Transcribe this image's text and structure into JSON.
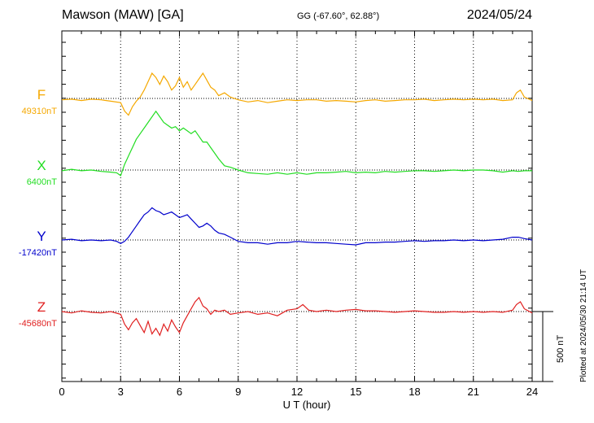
{
  "header": {
    "title": "Mawson (MAW)  [GA]",
    "coords": "GG (-67.60°,  62.88°)",
    "date": "2024/05/24"
  },
  "footer": {
    "plotted": "Plotted at 2024/05/30 21:14 UT",
    "scale_label": "500 nT"
  },
  "chart_data": {
    "type": "line",
    "title": "Mawson (MAW)  [GA]",
    "xlabel": "U T (hour)",
    "ylabel": "",
    "xlim": [
      0,
      24
    ],
    "x_ticks": [
      0,
      3,
      6,
      9,
      12,
      15,
      18,
      21,
      24
    ],
    "grid": true,
    "scale_bar_nT": 500,
    "series": [
      {
        "name": "F",
        "baseline_label": "49310nT",
        "baseline_nT": 49310,
        "color": "#f5a800",
        "points": [
          [
            0,
            -10
          ],
          [
            0.5,
            -5
          ],
          [
            1,
            -15
          ],
          [
            1.5,
            -5
          ],
          [
            2,
            -10
          ],
          [
            2.5,
            -20
          ],
          [
            3,
            -30
          ],
          [
            3.2,
            -90
          ],
          [
            3.4,
            -120
          ],
          [
            3.6,
            -60
          ],
          [
            3.8,
            -20
          ],
          [
            4,
            10
          ],
          [
            4.2,
            60
          ],
          [
            4.4,
            120
          ],
          [
            4.6,
            180
          ],
          [
            4.8,
            150
          ],
          [
            5,
            100
          ],
          [
            5.2,
            160
          ],
          [
            5.4,
            120
          ],
          [
            5.6,
            60
          ],
          [
            5.8,
            90
          ],
          [
            6,
            150
          ],
          [
            6.2,
            80
          ],
          [
            6.4,
            120
          ],
          [
            6.6,
            60
          ],
          [
            6.8,
            100
          ],
          [
            7,
            140
          ],
          [
            7.2,
            180
          ],
          [
            7.4,
            130
          ],
          [
            7.6,
            80
          ],
          [
            7.8,
            60
          ],
          [
            8,
            20
          ],
          [
            8.3,
            40
          ],
          [
            8.6,
            10
          ],
          [
            9,
            -10
          ],
          [
            9.5,
            -25
          ],
          [
            10,
            -15
          ],
          [
            10.5,
            -30
          ],
          [
            11,
            -20
          ],
          [
            11.5,
            -10
          ],
          [
            12,
            -15
          ],
          [
            12.5,
            -10
          ],
          [
            13,
            -10
          ],
          [
            13.5,
            -20
          ],
          [
            14,
            -15
          ],
          [
            14.5,
            -20
          ],
          [
            15,
            -25
          ],
          [
            15.5,
            -15
          ],
          [
            16,
            -10
          ],
          [
            16.5,
            -20
          ],
          [
            17,
            -15
          ],
          [
            17.5,
            -10
          ],
          [
            18,
            -10
          ],
          [
            18.5,
            -5
          ],
          [
            19,
            -15
          ],
          [
            19.5,
            -10
          ],
          [
            20,
            -5
          ],
          [
            20.5,
            -10
          ],
          [
            21,
            -5
          ],
          [
            21.5,
            -10
          ],
          [
            22,
            -5
          ],
          [
            22.5,
            -15
          ],
          [
            23,
            -10
          ],
          [
            23.2,
            40
          ],
          [
            23.4,
            60
          ],
          [
            23.6,
            10
          ],
          [
            24,
            -15
          ]
        ]
      },
      {
        "name": "X",
        "baseline_label": "6400nT",
        "baseline_nT": 6400,
        "color": "#22dd22",
        "points": [
          [
            0,
            -5
          ],
          [
            0.5,
            5
          ],
          [
            1,
            -5
          ],
          [
            1.5,
            0
          ],
          [
            2,
            -10
          ],
          [
            2.5,
            -15
          ],
          [
            2.8,
            -20
          ],
          [
            3,
            -40
          ],
          [
            3.2,
            40
          ],
          [
            3.4,
            100
          ],
          [
            3.6,
            160
          ],
          [
            3.8,
            220
          ],
          [
            4,
            260
          ],
          [
            4.2,
            300
          ],
          [
            4.4,
            340
          ],
          [
            4.6,
            380
          ],
          [
            4.8,
            420
          ],
          [
            5,
            380
          ],
          [
            5.2,
            340
          ],
          [
            5.4,
            320
          ],
          [
            5.6,
            300
          ],
          [
            5.8,
            310
          ],
          [
            6,
            280
          ],
          [
            6.2,
            300
          ],
          [
            6.4,
            280
          ],
          [
            6.6,
            260
          ],
          [
            6.8,
            280
          ],
          [
            7,
            240
          ],
          [
            7.2,
            200
          ],
          [
            7.4,
            200
          ],
          [
            7.6,
            160
          ],
          [
            7.8,
            120
          ],
          [
            8,
            80
          ],
          [
            8.3,
            30
          ],
          [
            8.6,
            20
          ],
          [
            9,
            0
          ],
          [
            9.5,
            -20
          ],
          [
            10,
            -25
          ],
          [
            10.5,
            -30
          ],
          [
            11,
            -20
          ],
          [
            11.5,
            -30
          ],
          [
            12,
            -20
          ],
          [
            12.5,
            -30
          ],
          [
            13,
            -20
          ],
          [
            13.5,
            -20
          ],
          [
            14,
            -15
          ],
          [
            14.5,
            -10
          ],
          [
            15,
            -20
          ],
          [
            15.5,
            -15
          ],
          [
            16,
            -20
          ],
          [
            16.5,
            -10
          ],
          [
            17,
            -15
          ],
          [
            17.5,
            -10
          ],
          [
            18,
            -5
          ],
          [
            18.5,
            -5
          ],
          [
            19,
            -10
          ],
          [
            19.5,
            -5
          ],
          [
            20,
            0
          ],
          [
            20.5,
            -5
          ],
          [
            21,
            0
          ],
          [
            21.5,
            0
          ],
          [
            22,
            -5
          ],
          [
            22.5,
            -15
          ],
          [
            23,
            -5
          ],
          [
            23.3,
            -10
          ],
          [
            23.6,
            -5
          ],
          [
            24,
            -5
          ]
        ]
      },
      {
        "name": "Y",
        "baseline_label": "-17420nT",
        "baseline_nT": -17420,
        "color": "#0000cc",
        "points": [
          [
            0,
            0
          ],
          [
            0.5,
            5
          ],
          [
            1,
            -5
          ],
          [
            1.5,
            0
          ],
          [
            2,
            -5
          ],
          [
            2.5,
            0
          ],
          [
            2.8,
            -10
          ],
          [
            3,
            -25
          ],
          [
            3.2,
            -10
          ],
          [
            3.4,
            20
          ],
          [
            3.6,
            60
          ],
          [
            3.8,
            100
          ],
          [
            4,
            140
          ],
          [
            4.2,
            180
          ],
          [
            4.4,
            200
          ],
          [
            4.6,
            230
          ],
          [
            4.8,
            210
          ],
          [
            5,
            200
          ],
          [
            5.2,
            180
          ],
          [
            5.4,
            190
          ],
          [
            5.6,
            200
          ],
          [
            5.8,
            180
          ],
          [
            6,
            160
          ],
          [
            6.2,
            170
          ],
          [
            6.4,
            180
          ],
          [
            6.6,
            150
          ],
          [
            6.8,
            120
          ],
          [
            7,
            90
          ],
          [
            7.2,
            100
          ],
          [
            7.4,
            120
          ],
          [
            7.6,
            100
          ],
          [
            7.8,
            70
          ],
          [
            8,
            50
          ],
          [
            8.3,
            40
          ],
          [
            8.6,
            20
          ],
          [
            9,
            -10
          ],
          [
            9.5,
            -20
          ],
          [
            10,
            -20
          ],
          [
            10.5,
            -30
          ],
          [
            11,
            -20
          ],
          [
            11.5,
            -20
          ],
          [
            12,
            -10
          ],
          [
            12.5,
            -15
          ],
          [
            13,
            -20
          ],
          [
            13.5,
            -20
          ],
          [
            14,
            -25
          ],
          [
            14.5,
            -30
          ],
          [
            15,
            -35
          ],
          [
            15.5,
            -20
          ],
          [
            16,
            -20
          ],
          [
            16.5,
            -15
          ],
          [
            17,
            -15
          ],
          [
            17.5,
            -10
          ],
          [
            18,
            -5
          ],
          [
            18.5,
            -10
          ],
          [
            19,
            -5
          ],
          [
            19.5,
            -5
          ],
          [
            20,
            0
          ],
          [
            20.5,
            -5
          ],
          [
            21,
            0
          ],
          [
            21.5,
            -5
          ],
          [
            22,
            0
          ],
          [
            22.5,
            5
          ],
          [
            23,
            20
          ],
          [
            23.3,
            20
          ],
          [
            23.6,
            10
          ],
          [
            24,
            0
          ]
        ]
      },
      {
        "name": "Z",
        "baseline_label": "-45680nT",
        "baseline_nT": -45680,
        "color": "#e02020",
        "points": [
          [
            0,
            0
          ],
          [
            0.5,
            -10
          ],
          [
            1,
            5
          ],
          [
            1.5,
            -5
          ],
          [
            2,
            -10
          ],
          [
            2.5,
            0
          ],
          [
            3,
            -20
          ],
          [
            3.2,
            -90
          ],
          [
            3.4,
            -130
          ],
          [
            3.6,
            -80
          ],
          [
            3.8,
            -50
          ],
          [
            4,
            -100
          ],
          [
            4.2,
            -150
          ],
          [
            4.4,
            -70
          ],
          [
            4.6,
            -160
          ],
          [
            4.8,
            -120
          ],
          [
            5,
            -170
          ],
          [
            5.2,
            -90
          ],
          [
            5.4,
            -140
          ],
          [
            5.6,
            -60
          ],
          [
            5.8,
            -110
          ],
          [
            6,
            -150
          ],
          [
            6.2,
            -80
          ],
          [
            6.4,
            -30
          ],
          [
            6.6,
            20
          ],
          [
            6.8,
            70
          ],
          [
            7,
            100
          ],
          [
            7.2,
            40
          ],
          [
            7.4,
            20
          ],
          [
            7.6,
            -20
          ],
          [
            7.8,
            10
          ],
          [
            8,
            0
          ],
          [
            8.3,
            10
          ],
          [
            8.6,
            -20
          ],
          [
            9,
            -10
          ],
          [
            9.5,
            0
          ],
          [
            10,
            -20
          ],
          [
            10.5,
            -10
          ],
          [
            11,
            -30
          ],
          [
            11.5,
            10
          ],
          [
            12,
            20
          ],
          [
            12.3,
            50
          ],
          [
            12.6,
            10
          ],
          [
            13,
            0
          ],
          [
            13.5,
            10
          ],
          [
            14,
            0
          ],
          [
            14.5,
            10
          ],
          [
            15,
            15
          ],
          [
            15.5,
            5
          ],
          [
            16,
            5
          ],
          [
            16.5,
            0
          ],
          [
            17,
            -5
          ],
          [
            17.5,
            0
          ],
          [
            18,
            5
          ],
          [
            18.5,
            0
          ],
          [
            19,
            -5
          ],
          [
            19.5,
            -5
          ],
          [
            20,
            0
          ],
          [
            20.5,
            -5
          ],
          [
            21,
            0
          ],
          [
            21.5,
            -5
          ],
          [
            22,
            0
          ],
          [
            22.5,
            -5
          ],
          [
            23,
            10
          ],
          [
            23.2,
            50
          ],
          [
            23.4,
            70
          ],
          [
            23.6,
            20
          ],
          [
            24,
            -10
          ]
        ]
      }
    ]
  }
}
